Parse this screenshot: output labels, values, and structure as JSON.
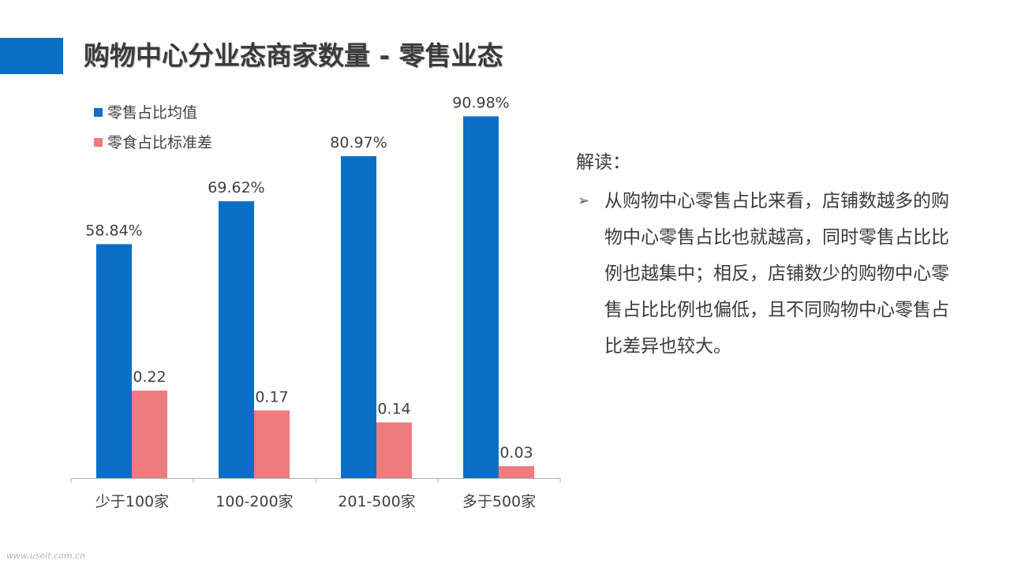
{
  "slide": {
    "title": "购物中心分业态商家数量 - 零售业态",
    "watermark": "www.useit.com.cn",
    "accent_color": "#0b6fc5"
  },
  "interpretation": {
    "heading": "解读：",
    "bullet_icon": "arrow-right-icon",
    "bullet_glyph": "➢",
    "text": "从购物中心零售占比来看，店铺数越多的购物中心零售占比也就越高，同时零售占比比例也越集中；相反，店铺数少的购物中心零售占比比例也偏低，且不同购物中心零售占比差异也较大。"
  },
  "chart_data": {
    "type": "bar",
    "title": "",
    "xlabel": "",
    "ylabel": "",
    "categories": [
      "少于100家",
      "100-200家",
      "201-500家",
      "多于500家"
    ],
    "series": [
      {
        "name": "零售占比均值",
        "color": "#0b6fc5",
        "values": [
          0.5884,
          0.6962,
          0.8097,
          0.9098
        ],
        "labels": [
          "58.84%",
          "69.62%",
          "80.97%",
          "90.98%"
        ]
      },
      {
        "name": "零食占比标准差",
        "color": "#ee7b7e",
        "values": [
          0.22,
          0.17,
          0.14,
          0.03
        ],
        "labels": [
          "0.22",
          "0.17",
          "0.14",
          "0.03"
        ]
      }
    ],
    "ylim": [
      0,
      1
    ],
    "grid": false,
    "legend": "top-left"
  }
}
